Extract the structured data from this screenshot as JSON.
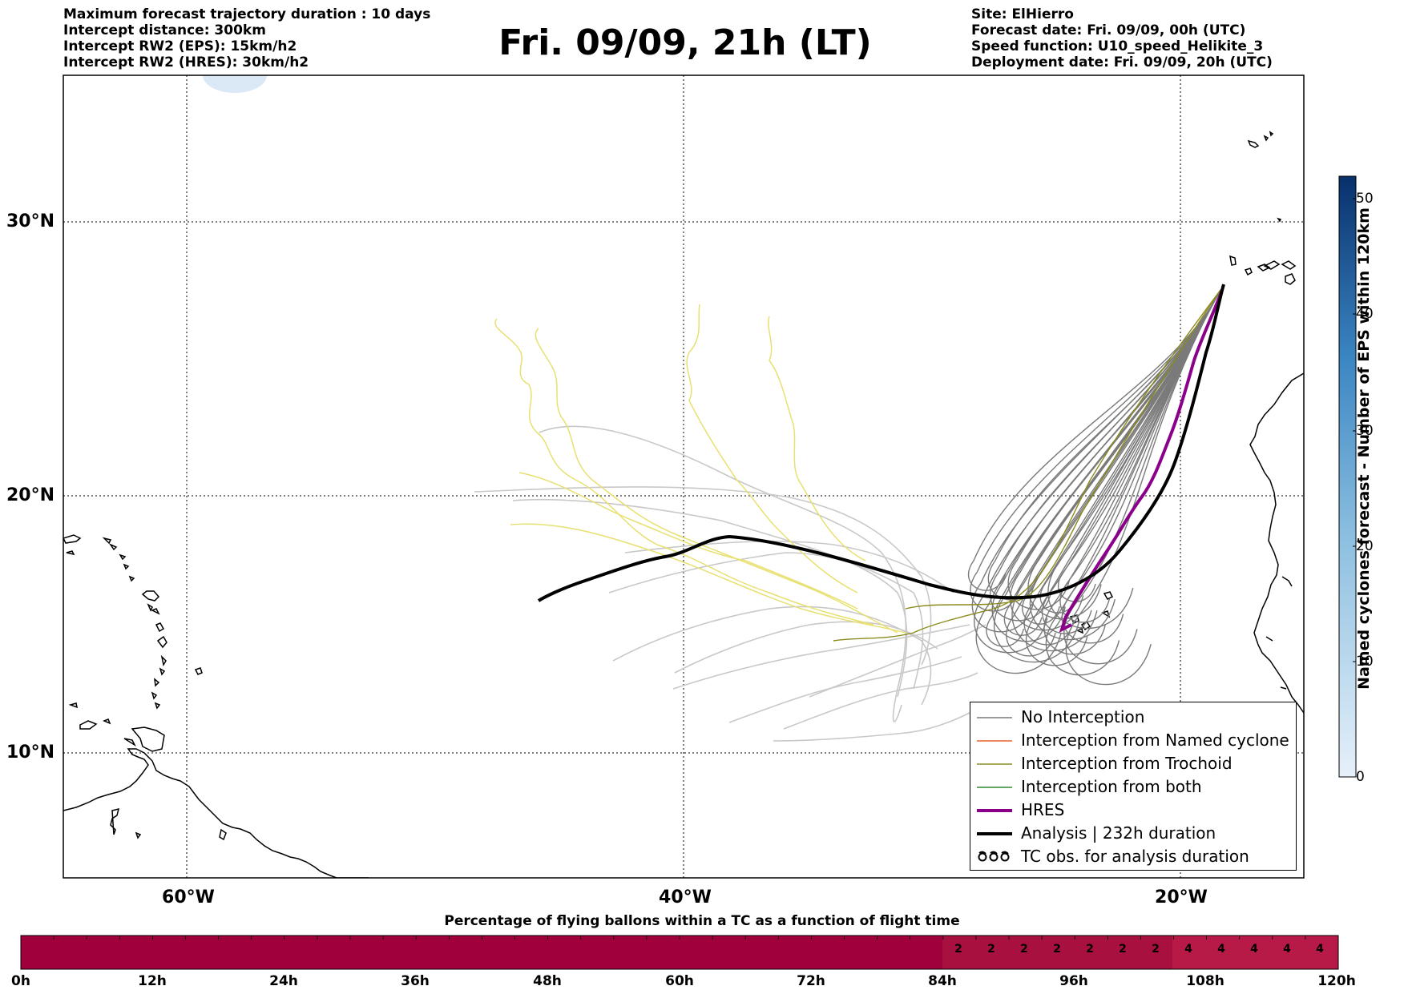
{
  "header": {
    "left_lines": [
      "Maximum forecast trajectory duration : 10 days",
      "Intercept distance: 300km",
      "Intercept RW2 (EPS):  15km/h2",
      "Intercept RW2 (HRES): 30km/h2"
    ],
    "right_lines": [
      "Site: ElHierro",
      "Forecast date: Fri. 09/09, 00h (UTC)",
      "Speed function: U10_speed_Helikite_3",
      "Deployment date: Fri. 09/09, 20h (UTC)"
    ],
    "title": "Fri. 09/09, 21h (LT)"
  },
  "map": {
    "lat_labels": [
      "30°N",
      "20°N",
      "10°N"
    ],
    "lon_labels": [
      "60°W",
      "40°W",
      "20°W"
    ],
    "colors": {
      "no_interception": "#7a7a7a",
      "eps_light": "#c8c8c8",
      "named_cyclone": "#e8622a",
      "trochoid": "#8b8b1e",
      "both": "#2e8b2e",
      "hres": "#8b008b",
      "analysis": "#000000",
      "yellow_tracks": "#e8e070"
    }
  },
  "legend": {
    "items": [
      "No Interception",
      "Interception from Named cyclone",
      "Interception from Trochoid",
      "Interception from both",
      "HRES",
      "Analysis | 232h duration",
      "TC obs. for analysis duration"
    ]
  },
  "colorbar": {
    "title": "Named cyclones forecast - Number of EPS within 120km",
    "ticks": [
      "0",
      "10",
      "20",
      "30",
      "40",
      "50"
    ],
    "range": [
      0,
      52
    ],
    "colors": [
      "#e6f0fa",
      "#08306b"
    ]
  },
  "bottom_bar": {
    "title": "Percentage of flying ballons within a TC as a function of flight time",
    "hour_labels": [
      "0h",
      "12h",
      "24h",
      "36h",
      "48h",
      "60h",
      "72h",
      "84h",
      "96h",
      "108h",
      "120h"
    ],
    "pct_labels": [
      "2",
      "2",
      "2",
      "2",
      "2",
      "2",
      "2",
      "4",
      "4",
      "4",
      "4",
      "4"
    ],
    "colors": {
      "base": "#a0003c",
      "mid": "#a81040",
      "high": "#b81a48"
    }
  }
}
